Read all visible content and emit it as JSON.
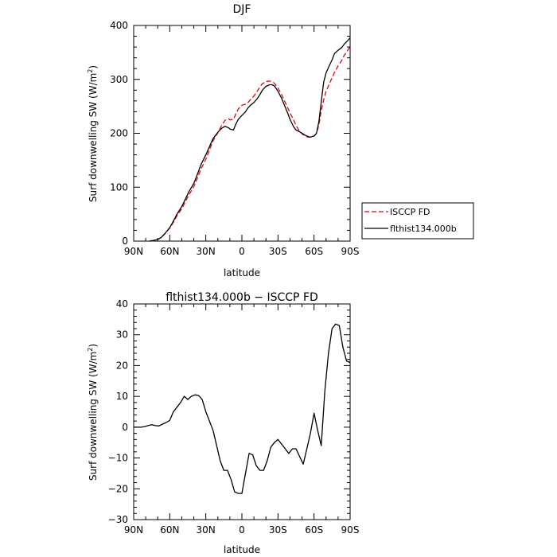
{
  "chart_data": [
    {
      "type": "line",
      "title": "DJF",
      "xlabel": "latitude",
      "ylabel": "Surf downwelling SW (W/m²)",
      "ylabel_main": "Surf downwelling SW (W/m",
      "ylabel_sup": "2",
      "ylabel_end": ")",
      "xlim": [
        90,
        -90
      ],
      "ylim": [
        0,
        400
      ],
      "xticks": [
        90,
        60,
        30,
        0,
        -30,
        -60,
        -90
      ],
      "xtick_labels": [
        "90N",
        "60N",
        "30N",
        "0",
        "30S",
        "60S",
        "90S"
      ],
      "yticks": [
        0,
        100,
        200,
        300,
        400
      ],
      "ytick_labels": [
        "0",
        "100",
        "200",
        "300",
        "400"
      ],
      "grid": false,
      "legend_position": "right",
      "legend": [
        "ISCCP FD",
        "flthist134.000b"
      ],
      "series": [
        {
          "name": "ISCCP FD",
          "color": "#e8000b",
          "dash": "dashed",
          "x": [
            77,
            74,
            70,
            67,
            64,
            60,
            57,
            54,
            50,
            47,
            44,
            40,
            37,
            34,
            30,
            27,
            24,
            20,
            17,
            14,
            11,
            10,
            7,
            5,
            3,
            0,
            -3,
            -5,
            -7,
            -10,
            -13,
            -15,
            -17,
            -20,
            -23,
            -25,
            -27,
            -30,
            -33,
            -35,
            -38,
            -40,
            -43,
            -45,
            -48,
            -50,
            -53,
            -55,
            -57,
            -60,
            -62,
            -64,
            -66,
            -68,
            -70,
            -73,
            -75,
            -77,
            -80,
            -83,
            -85,
            -88,
            -90
          ],
          "y": [
            0,
            1,
            3,
            7,
            14,
            24,
            35,
            47,
            60,
            73,
            86,
            101,
            117,
            134,
            152,
            169,
            186,
            201,
            214,
            224,
            227,
            225,
            226,
            236,
            245,
            252,
            254,
            257,
            262,
            269,
            279,
            286,
            292,
            296,
            297,
            296,
            293,
            284,
            272,
            262,
            248,
            238,
            225,
            214,
            204,
            199,
            194,
            193,
            193,
            195,
            200,
            215,
            242,
            262,
            278,
            293,
            303,
            313,
            325,
            335,
            344,
            354,
            361
          ]
        },
        {
          "name": "flthist134.000b",
          "color": "#000000",
          "dash": "solid",
          "x": [
            77,
            74,
            70,
            67,
            64,
            60,
            57,
            54,
            50,
            47,
            44,
            40,
            37,
            34,
            30,
            27,
            24,
            20,
            17,
            14,
            11,
            10,
            7,
            5,
            3,
            0,
            -3,
            -5,
            -7,
            -10,
            -13,
            -15,
            -17,
            -20,
            -23,
            -25,
            -27,
            -30,
            -33,
            -35,
            -38,
            -40,
            -43,
            -45,
            -48,
            -50,
            -53,
            -55,
            -57,
            -60,
            -62,
            -64,
            -66,
            -68,
            -70,
            -73,
            -75,
            -77,
            -80,
            -83,
            -85,
            -88,
            -90
          ],
          "y": [
            0,
            1,
            3,
            7,
            14,
            25,
            37,
            50,
            64,
            78,
            92,
            107,
            124,
            142,
            160,
            175,
            190,
            202,
            209,
            213,
            210,
            208,
            206,
            217,
            226,
            233,
            240,
            247,
            252,
            257,
            265,
            272,
            280,
            287,
            290,
            290,
            288,
            278,
            265,
            254,
            238,
            226,
            212,
            206,
            203,
            200,
            196,
            194,
            193,
            195,
            200,
            221,
            258,
            295,
            312,
            327,
            336,
            348,
            354,
            359,
            365,
            372,
            377
          ]
        }
      ]
    },
    {
      "type": "line",
      "title": "flthist134.000b − ISCCP FD",
      "xlabel": "latitude",
      "ylabel": "Surf downwelling SW (W/m²)",
      "ylabel_main": "Surf downwelling SW (W/m",
      "ylabel_sup": "2",
      "ylabel_end": ")",
      "xlim": [
        90,
        -90
      ],
      "ylim": [
        -30,
        40
      ],
      "xticks": [
        90,
        60,
        30,
        0,
        -30,
        -60,
        -90
      ],
      "xtick_labels": [
        "90N",
        "60N",
        "30N",
        "0",
        "30S",
        "60S",
        "90S"
      ],
      "yticks": [
        -30,
        -20,
        -10,
        0,
        10,
        20,
        30,
        40
      ],
      "ytick_labels": [
        "−30",
        "−20",
        "−10",
        "0",
        "10",
        "20",
        "30",
        "40"
      ],
      "grid": false,
      "series": [
        {
          "color": "#000000",
          "dash": "solid",
          "x": [
            90,
            87,
            84,
            81,
            78,
            75,
            72,
            69,
            66,
            63,
            60,
            57,
            54,
            51,
            48,
            45,
            42,
            39,
            36,
            33,
            30,
            27,
            24,
            21,
            18,
            15,
            12,
            9,
            6,
            3,
            0,
            -3,
            -6,
            -9,
            -12,
            -15,
            -18,
            -21,
            -24,
            -27,
            -30,
            -33,
            -36,
            -39,
            -42,
            -45,
            -48,
            -51,
            -54,
            -57,
            -60,
            -63,
            -66,
            -69,
            -72,
            -75,
            -78,
            -81,
            -84,
            -87,
            -90
          ],
          "y": [
            0,
            0,
            0,
            0.2,
            0.5,
            0.8,
            0.5,
            0.4,
            1,
            1.5,
            2.2,
            5,
            6.5,
            8,
            10,
            9,
            10,
            10.5,
            10.3,
            9,
            5,
            2,
            -1,
            -6,
            -11,
            -14,
            -14,
            -17,
            -21,
            -21.5,
            -21.5,
            -15,
            -8.5,
            -9,
            -12.5,
            -14,
            -14,
            -11,
            -6.5,
            -5,
            -4,
            -5.5,
            -7,
            -8.5,
            -7,
            -7,
            -9.5,
            -12,
            -7,
            -2,
            4.5,
            -1,
            -6,
            12,
            24,
            32,
            33.5,
            33,
            26,
            21.5,
            21
          ]
        }
      ]
    }
  ]
}
